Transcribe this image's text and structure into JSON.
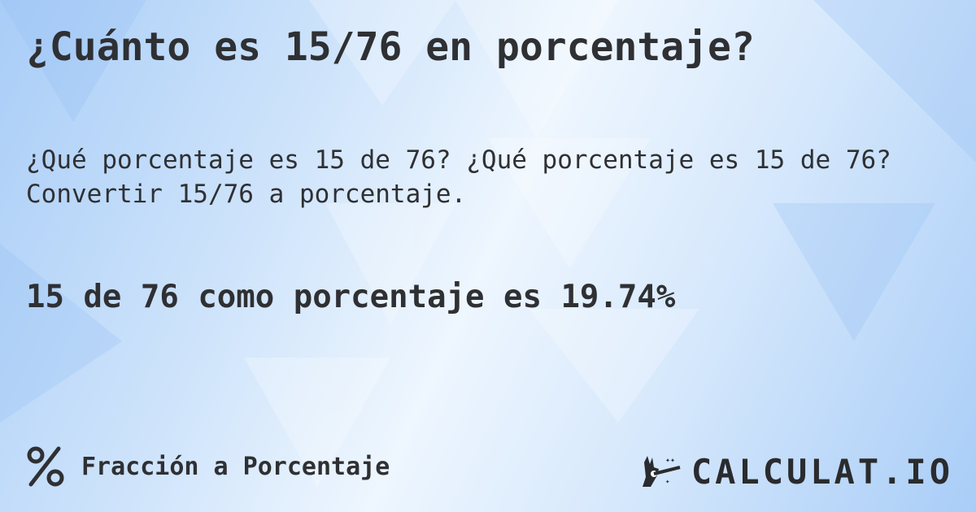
{
  "title": "¿Cuánto es 15/76 en porcentaje?",
  "description": [
    "¿Qué porcentaje es 15 de 76? ¿Qué porcentaje es 15 de 76?",
    "Convertir 15/76 a porcentaje."
  ],
  "result": "15 de 76 como porcentaje es 19.74%",
  "footer": {
    "icon": "percent-icon",
    "label": "Fracción a Porcentaje"
  },
  "logo": {
    "icon": "magic-hand-wand-icon",
    "text": "CALCULAT.IO"
  },
  "colors": {
    "text": "#2f3033",
    "background": "#cfe4fb"
  }
}
